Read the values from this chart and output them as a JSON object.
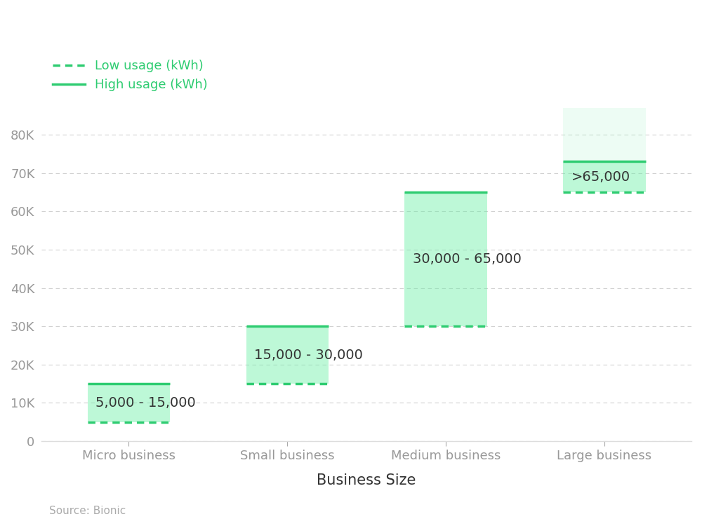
{
  "categories": [
    "Micro business",
    "Small business",
    "Medium business",
    "Large business"
  ],
  "low_values": [
    5000,
    15000,
    30000,
    65000
  ],
  "high_values": [
    15000,
    30000,
    65000,
    73000
  ],
  "top_faded_values": [
    null,
    null,
    null,
    87000
  ],
  "labels": [
    "5,000 - 15,000",
    "15,000 - 30,000",
    "30,000 - 65,000",
    ">65,000"
  ],
  "fill_color": "#6ef0a8",
  "fill_color_alpha": 0.45,
  "fill_color_faded": "#b8f5d4",
  "fill_color_faded_alpha": 0.25,
  "border_color": "#2ecc71",
  "xlabel": "Business Size",
  "ylim": [
    0,
    90000
  ],
  "yticks": [
    0,
    10000,
    20000,
    30000,
    40000,
    50000,
    60000,
    70000,
    80000
  ],
  "ytick_labels": [
    "0",
    "10K",
    "20K",
    "30K",
    "40K",
    "50K",
    "60K",
    "70K",
    "80K"
  ],
  "background_color": "#ffffff",
  "legend_low_label": "Low usage (kWh)",
  "legend_high_label": "High usage (kWh)",
  "legend_color": "#2ecc71",
  "source_text": "Source: Bionic",
  "label_fontsize": 14,
  "axis_label_fontsize": 15,
  "tick_fontsize": 13,
  "legend_fontsize": 13,
  "source_fontsize": 11,
  "bar_width": 0.52,
  "grid_color": "#cccccc",
  "tick_color": "#aaaaaa",
  "text_color": "#333333",
  "axis_text_color": "#999999"
}
